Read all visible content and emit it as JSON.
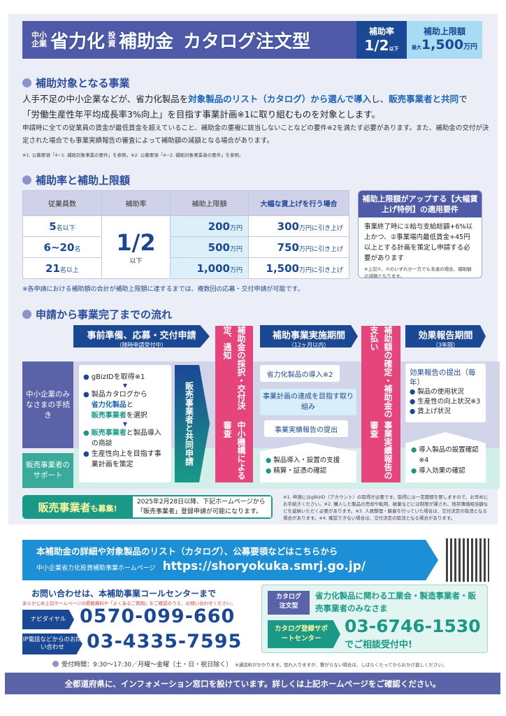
{
  "header": {
    "prefix_small": "中小企業",
    "title1": "省力化",
    "small2": "投資",
    "title2": "補助金",
    "title3": "カタログ注文型",
    "rate_label": "補助率",
    "rate_value": "1/2",
    "rate_suffix": "以下",
    "limit_label": "補助上限額",
    "limit_prefix": "最大",
    "limit_value": "1,500",
    "limit_unit": "万円"
  },
  "section1": {
    "title": "補助対象となる事業",
    "line1_a": "人手不足の中小企業などが、省力化製品を",
    "line1_b": "対象製品のリスト（カタログ）から選んで導入",
    "line1_c": "し、",
    "line1_d": "販売事業者と共同",
    "line1_e": "で",
    "line2": "「労働生産性年平均成長率3%向上」を目指す事業計画※1に取り組むものを対象とします。",
    "note": "申請時に全ての従業員の賃金が最低賃金を超えていること、補助金の重複に該当しないことなどの要件※2を満たす必要があります。また、補助金の交付が決定された場合でも事業実績報告の審査によって補助額の減額となる場合があります。",
    "footnote": "※1. 公募要領「4−1. 補助対象事業の要件」を参照。※2. 公募要領「4−2. 補助対象事業者の要件」を参照。"
  },
  "section2": {
    "title": "補助率と補助上限額",
    "headers": [
      "従業員数",
      "補助率",
      "補助上限額",
      "大幅な賃上げを行う場合"
    ],
    "rate": "1/2",
    "rate_suffix": "以下",
    "rows": [
      {
        "emp_n": "5",
        "emp_u": "名以下",
        "lim": "200",
        "up": "300"
      },
      {
        "emp_n": "6~20",
        "emp_u": "名",
        "lim": "500",
        "up": "750"
      },
      {
        "emp_n": "21",
        "emp_u": "名以上",
        "lim": "1,000",
        "up": "1,500"
      }
    ],
    "unit": "万円",
    "up_suffix": "万円に引き上げ",
    "callout_title": "補助上限額がアップする【大幅賃上げ特例】の適用要件",
    "callout_body": "事業終了時に①給与支給総額+6%以上かつ、②事業場内最低賃金+45円以上とする計画を策定し申請する必要があります",
    "callout_note": "※上記①、②のいずれか一方でも未達の場合、補助額の減額となります。",
    "footnote": "※各申請における補助額の合計が補助上限額に達するまでは、複数回の応募・交付申請が可能です。"
  },
  "section3": {
    "title": "申請から事業完了までの流れ",
    "phase1": "事前準備、応募・交付申請",
    "phase1_sub": "（随時申請受付中）",
    "phase2": "補助事業実施期間",
    "phase2_sub": "（12ヶ月以内）",
    "phase3": "効果報告期間",
    "phase3_sub": "（3年間）",
    "pink1a": "補助金の採択・交付決定、通知",
    "pink1b": "中小機構による審査",
    "pink2a": "補助額の確定・補助金の支払い",
    "pink2b": "事業実績報告の審査",
    "lane1": "中小企業のみなさまの手続き",
    "lane2": "販売事業者のサポート",
    "steps": {
      "s1": "gBizIDを取得※1",
      "s2a": "製品カタログから",
      "s2b": "省力化製品",
      "s2c": "と",
      "s2d": "販売事業者",
      "s2e": "を選択",
      "s3a": "販売事業者",
      "s3b": "と製品導入の商談",
      "s4": "生産性向上を目指す事業計画を策定"
    },
    "joint": "販売事業者と共同申請",
    "p2_a": "省力化製品の導入※2",
    "p2_b": "事業計画の達成を目指す取り組み",
    "p2_c": "事業実績報告の提出",
    "p2_s1": "製品導入・設置の支援",
    "p2_s2": "精算・証憑の確認",
    "p3_title": "効果報告の提出（毎年）",
    "p3_items": [
      "製品の使用状況",
      "生産性の向上状況※3",
      "賃上げ状況"
    ],
    "p3_s1": "導入製品の設置確認※4",
    "p3_s2": "導入効果の確認",
    "recruit_a": "販売事業者",
    "recruit_b": "も募集!",
    "recruit_text": "2025年2月28日以降、下記ホームページから「販売事業者」登録申請が可能になります。",
    "footnote": "※1. 申請にはgBizID（アカウント）の取得が必要です。取得には一定期間を要しますので、お早めにお手続きください。※2. 購入した製品の売却や転用、破棄などには制限が課され、残存簿価相当額などを返納いただく必要があります。※3. 人員整理・解雇を行っていた場合は、交付決定の取消となる場合があります。※4. 確認できない場合は、交付決定の取消となる場合があります。"
  },
  "web": {
    "title": "本補助金の詳細や対象製品のリスト（カタログ）、公募要領などはこちらから",
    "site": "中小企業省力化投資補助事業ホームページ",
    "url": "https://shoryokuka.smrj.go.jp/"
  },
  "contact": {
    "title": "お問い合わせは、本補助事業コールセンターまで",
    "note": "あらかじめ上記ホームページの掲載資料や「よくあるご質問」をご確認のうえ、お問い合わせください。",
    "navi_label": "ナビダイヤル",
    "navi_number": "0570-099-660",
    "ip_label": "IP電話などからのお問い合わせ",
    "ip_number": "03-4335-7595",
    "hours": "受付時間：9:30〜17:30／月曜〜金曜（土・日・祝日除く）",
    "hours_note": "※通話料がかかります。恐れ入りますが、繋がらない場合は、しばらくたってからおかけ直しください。"
  },
  "catalog": {
    "tag": "カタログ注文型",
    "target": "省力化製品に関わる工業会・製造事業者・販売事業者のみなさま",
    "center": "カタログ登録サポートセンター",
    "number": "03-6746-1530",
    "suffix": "でご相談受付中!"
  },
  "footer": "全都道府県に、インフォメーション窓口を設けています。詳しくは上記ホームページをご確認ください。",
  "colors": {
    "navy": "#1a4894",
    "purple": "#4f5aa8",
    "pink": "#e5457a",
    "teal": "#1a9a86",
    "sky": "#1d8fd6"
  }
}
